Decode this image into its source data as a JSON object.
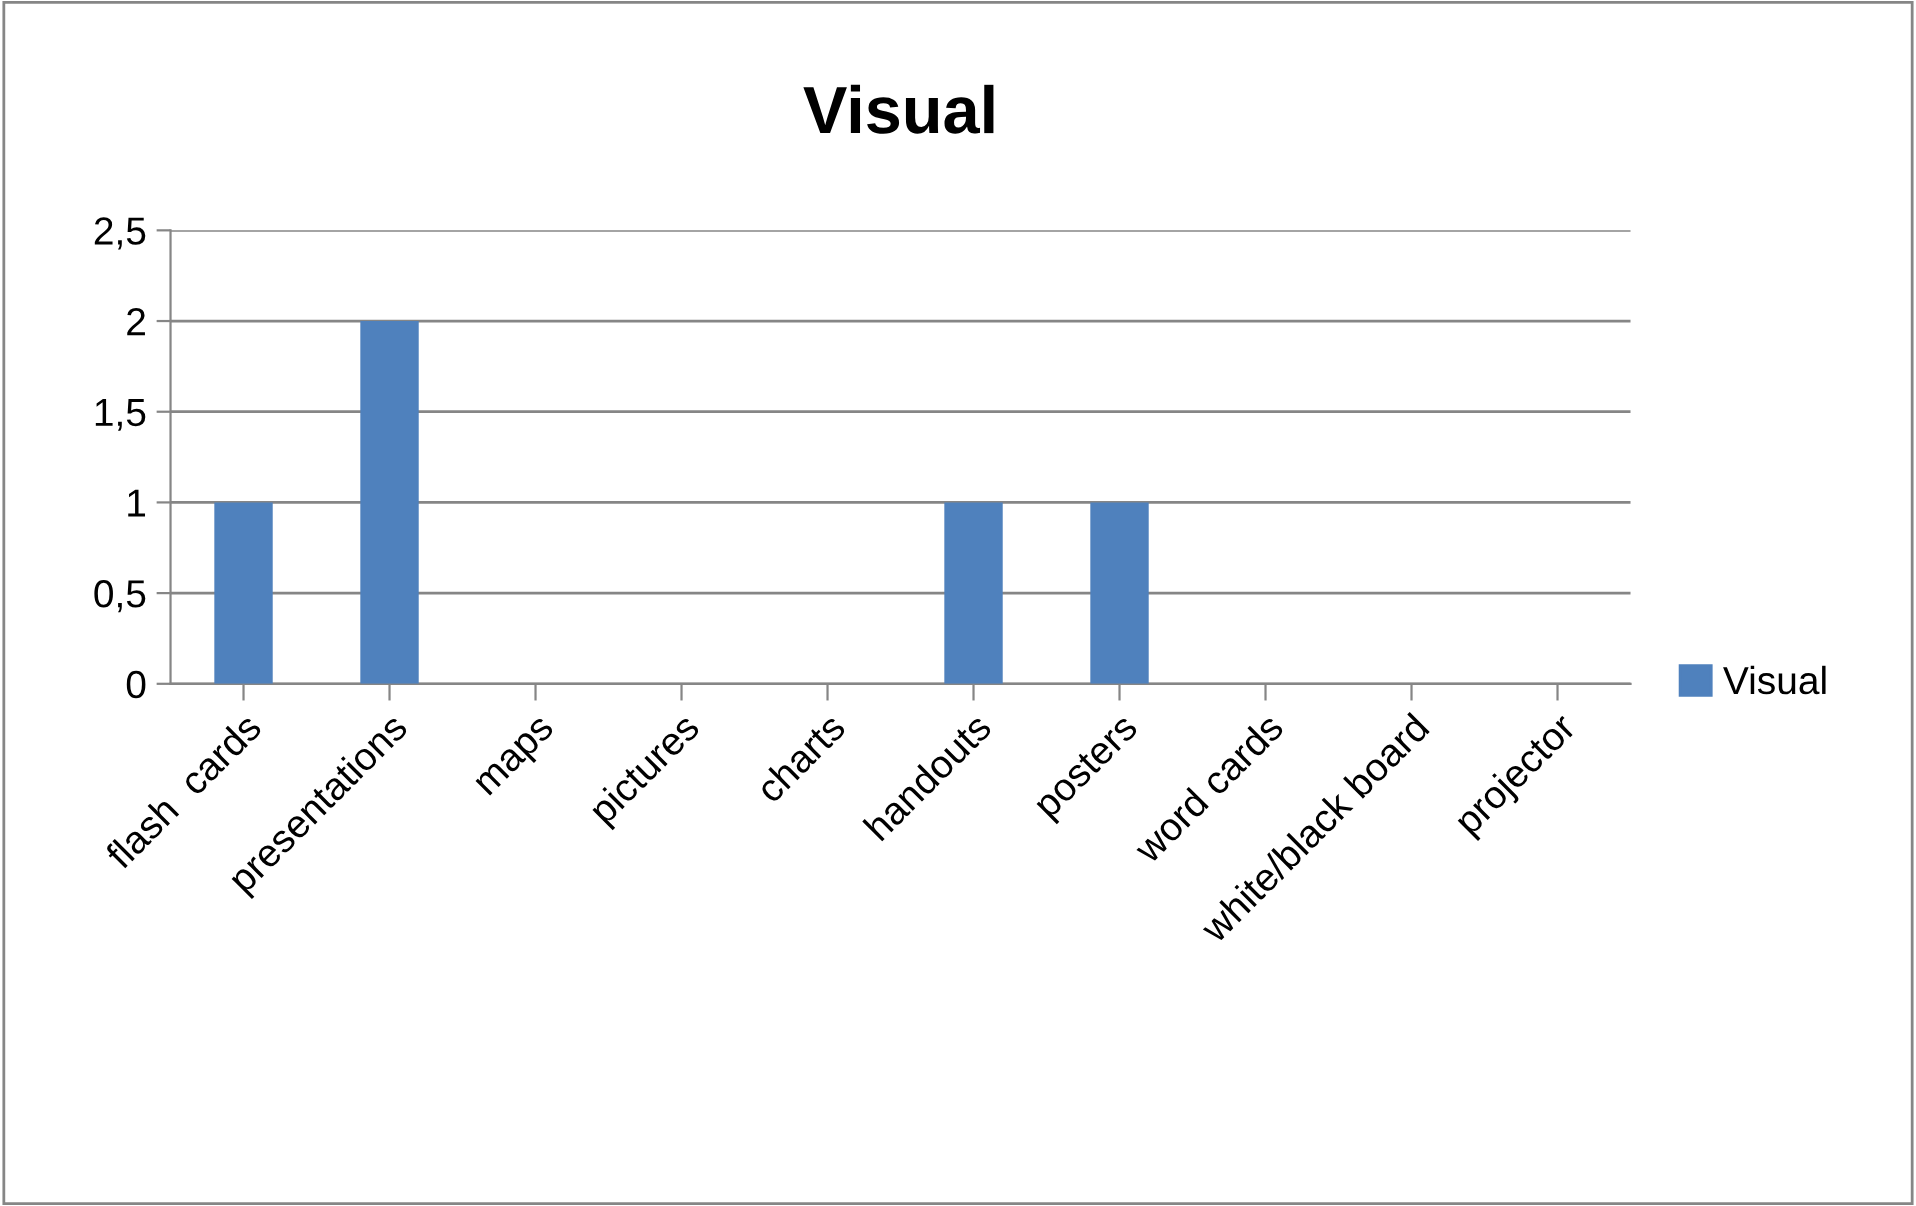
{
  "chart_data": {
    "type": "bar",
    "title": "Visual",
    "categories": [
      "flash  cards",
      "presentations",
      "maps",
      "pictures",
      "charts",
      "handouts",
      "posters",
      "word cards",
      "white/black board",
      "projector"
    ],
    "series": [
      {
        "name": "Visual",
        "color": "#4f81bd",
        "values": [
          1,
          2,
          0,
          0,
          0,
          1,
          1,
          0,
          0,
          0
        ]
      }
    ],
    "ylim": [
      0,
      2.5
    ],
    "yticks": [
      0,
      {
        "value": 0.5,
        "label": "0,5"
      },
      1,
      {
        "value": 1.5,
        "label": "1,5"
      },
      2,
      {
        "value": 2.5,
        "label": "2,5"
      }
    ],
    "grid": "y",
    "legend": "right"
  }
}
